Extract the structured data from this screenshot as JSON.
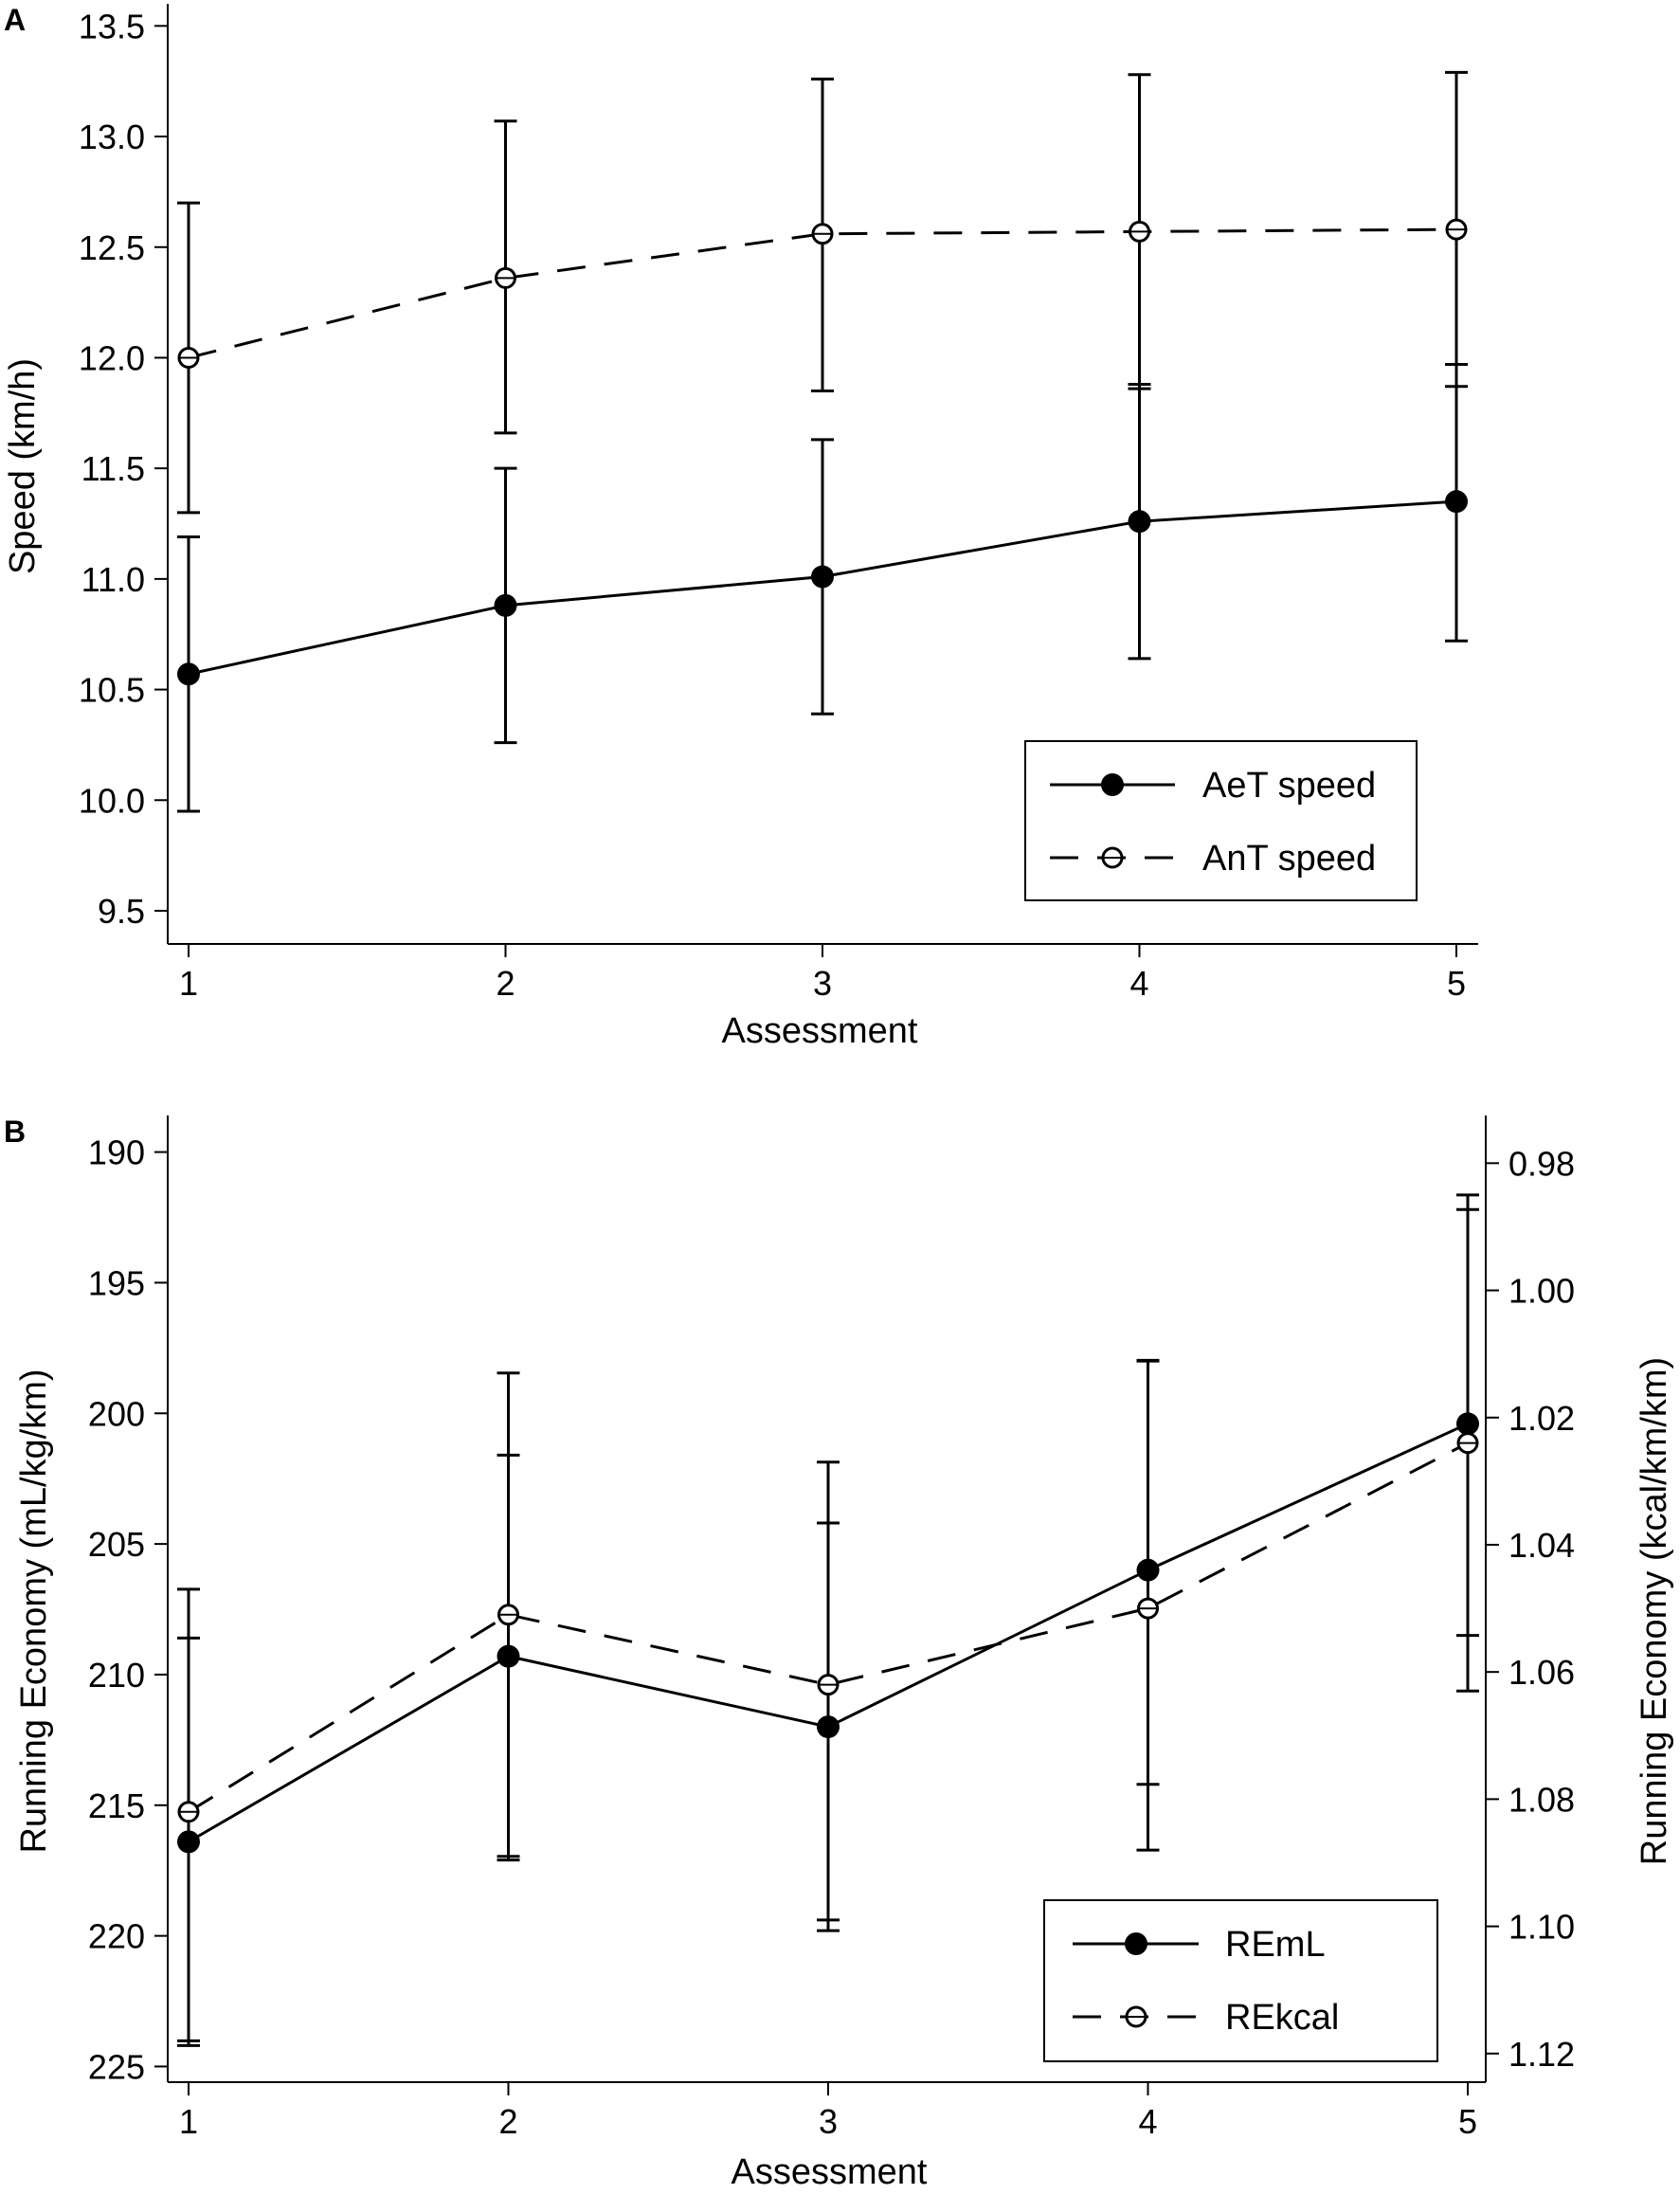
{
  "chart_data": [
    {
      "panel": "A",
      "type": "line",
      "xlabel": "Assessment",
      "ylabel": "Speed (km/h)",
      "categories": [
        1,
        2,
        3,
        4,
        5
      ],
      "x_ticks": [
        "1",
        "2",
        "3",
        "4",
        "5"
      ],
      "ylim": [
        9.35,
        13.6
      ],
      "y_ticks": [
        "9.5",
        "10.0",
        "10.5",
        "11.0",
        "11.5",
        "12.0",
        "12.5",
        "13.0",
        "13.5"
      ],
      "grid": false,
      "legend_position": "bottom-right",
      "series": [
        {
          "name": "AeT speed",
          "marker": "filled-circle",
          "line": "solid",
          "values": [
            10.57,
            10.88,
            11.01,
            11.26,
            11.35
          ],
          "error_low": [
            9.95,
            10.26,
            10.39,
            10.64,
            10.72
          ],
          "error_high": [
            11.19,
            11.5,
            11.63,
            11.88,
            11.97
          ]
        },
        {
          "name": "AnT speed",
          "marker": "open-circle",
          "line": "dashed",
          "values": [
            12.0,
            12.36,
            12.56,
            12.57,
            12.58
          ],
          "error_low": [
            11.3,
            11.66,
            11.85,
            11.86,
            11.87
          ],
          "error_high": [
            12.7,
            13.07,
            13.26,
            13.28,
            13.29
          ]
        }
      ]
    },
    {
      "panel": "B",
      "type": "line",
      "xlabel": "Assessment",
      "ylabel": "Running Economy (mL/kg/km)",
      "ylabel_right": "Running Economy (kcal/km/km)",
      "categories": [
        1,
        2,
        3,
        4,
        5
      ],
      "x_ticks": [
        "1",
        "2",
        "3",
        "4",
        "5"
      ],
      "ylim": [
        188.6,
        225.6
      ],
      "y_inverted": true,
      "y_ticks": [
        "190",
        "195",
        "200",
        "205",
        "210",
        "215",
        "220",
        "225"
      ],
      "ylim_right": [
        0.9725,
        1.1245
      ],
      "y_ticks_right": [
        "0.98",
        "1.00",
        "1.02",
        "1.04",
        "1.06",
        "1.08",
        "1.10",
        "1.12"
      ],
      "grid": false,
      "legend_position": "bottom-right",
      "series": [
        {
          "name": "REmL",
          "axis": "left",
          "marker": "filled-circle",
          "line": "solid",
          "values": [
            216.4,
            209.3,
            212.0,
            206.0,
            200.4
          ],
          "error_low": [
            208.6,
            201.6,
            204.2,
            198.0,
            192.2
          ],
          "error_high": [
            224.2,
            217.1,
            219.8,
            214.2,
            208.5
          ]
        },
        {
          "name": "REkcal",
          "axis": "right",
          "marker": "open-circle",
          "line": "dashed",
          "values": [
            1.082,
            1.051,
            1.062,
            1.05,
            1.024
          ],
          "error_low": [
            1.047,
            1.013,
            1.027,
            1.011,
            0.985
          ],
          "error_high": [
            1.118,
            1.089,
            1.099,
            1.088,
            1.063
          ]
        }
      ]
    }
  ]
}
